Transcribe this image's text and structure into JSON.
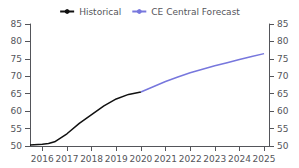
{
  "chart_data": {
    "type": "line",
    "series": [
      {
        "name": "Historical",
        "color": "#111111",
        "x": [
          2015.5,
          2016.0,
          2016.25,
          2016.5,
          2017.0,
          2017.5,
          2018.0,
          2018.5,
          2019.0,
          2019.5,
          2020.0
        ],
        "values": [
          50.3,
          50.5,
          50.7,
          51.2,
          53.5,
          56.5,
          59.0,
          61.5,
          63.5,
          64.8,
          65.5
        ]
      },
      {
        "name": "CE Central Forecast",
        "color": "#7777dd",
        "x": [
          2020.0,
          2020.5,
          2021.0,
          2021.5,
          2022.0,
          2022.5,
          2023.0,
          2023.5,
          2024.0,
          2024.5,
          2025.0
        ],
        "values": [
          65.5,
          67.0,
          68.5,
          69.8,
          71.0,
          72.0,
          73.0,
          73.9,
          74.8,
          75.7,
          76.5
        ]
      }
    ],
    "xlim": [
      2015.5,
      2025.2
    ],
    "xticks": [
      2016,
      2017,
      2018,
      2019,
      2020,
      2021,
      2022,
      2023,
      2024,
      2025
    ],
    "ylim": [
      50,
      85
    ],
    "yticks": [
      50,
      55,
      60,
      65,
      70,
      75,
      80,
      85
    ],
    "y2lim": [
      50,
      85
    ],
    "y2ticks": [
      50,
      55,
      60,
      65,
      70,
      75,
      80,
      85
    ],
    "grid": false,
    "legend": "top"
  }
}
